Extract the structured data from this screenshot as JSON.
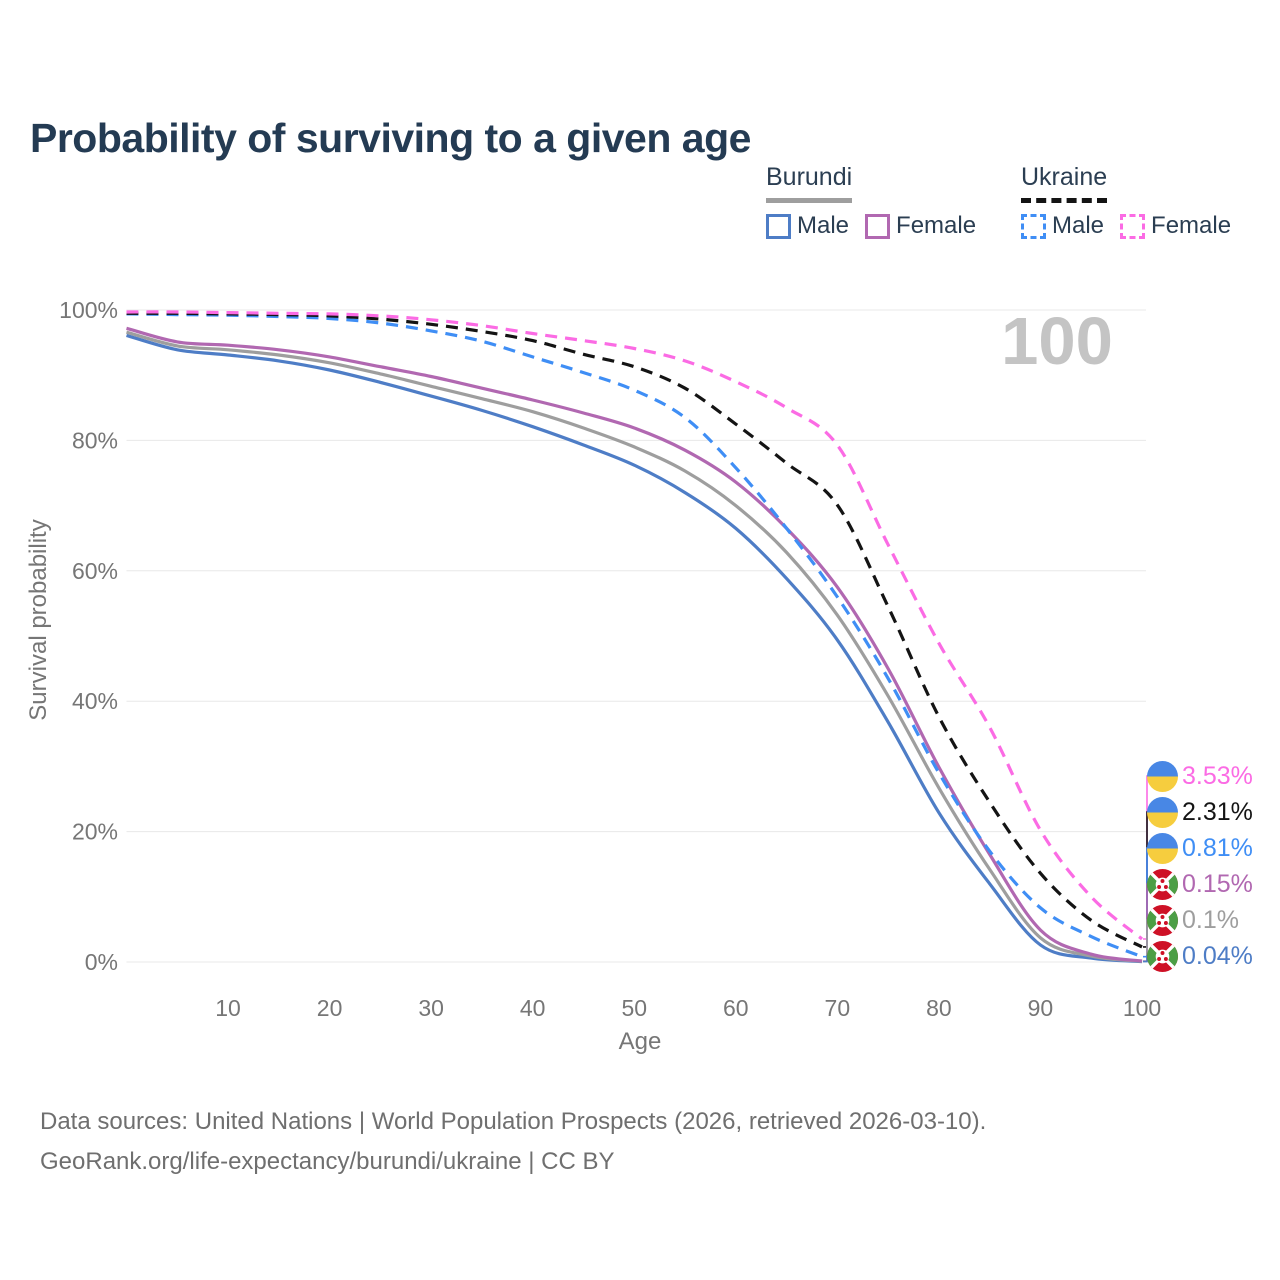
{
  "title": "Probability of surviving to a given age",
  "watermark": "100",
  "legend": {
    "groups": [
      {
        "country": "Burundi",
        "line_color": "#9E9E9E",
        "line_style": "solid",
        "items": [
          {
            "label": "Male",
            "color": "#4E7DC6",
            "dashed": false
          },
          {
            "label": "Female",
            "color": "#B168B1",
            "dashed": false
          }
        ]
      },
      {
        "country": "Ukraine",
        "line_color": "#141414",
        "line_style": "dashed",
        "items": [
          {
            "label": "Male",
            "color": "#3F8EF5",
            "dashed": true
          },
          {
            "label": "Female",
            "color": "#FB6BE4",
            "dashed": true
          }
        ]
      }
    ]
  },
  "chart_data": {
    "type": "line",
    "title": "Probability of surviving to a given age",
    "xlabel": "Age",
    "ylabel": "Survival probability",
    "xlim": [
      0,
      100
    ],
    "ylim": [
      0,
      100
    ],
    "grid": "horizontal",
    "x_ticks": [
      10,
      20,
      30,
      40,
      50,
      60,
      70,
      80,
      90,
      100
    ],
    "y_ticks": [
      {
        "value": 0,
        "label": "0%"
      },
      {
        "value": 20,
        "label": "20%"
      },
      {
        "value": 40,
        "label": "40%"
      },
      {
        "value": 60,
        "label": "60%"
      },
      {
        "value": 80,
        "label": "80%"
      },
      {
        "value": 100,
        "label": "100%"
      }
    ],
    "x": [
      0,
      5,
      10,
      15,
      20,
      25,
      30,
      35,
      40,
      45,
      50,
      55,
      60,
      65,
      70,
      75,
      80,
      85,
      90,
      95,
      100
    ],
    "series": [
      {
        "name": "Ukraine Female",
        "country": "ukraine",
        "sex": "female",
        "color": "#FB6BE4",
        "dashed": true,
        "flag": "ukraine",
        "end_label": "3.53%",
        "values": [
          99.7,
          99.7,
          99.6,
          99.5,
          99.4,
          99.1,
          98.5,
          97.6,
          96.4,
          95.3,
          94.1,
          92.2,
          89.0,
          85.0,
          79.3,
          64.0,
          48.9,
          36.0,
          20.2,
          10.0,
          3.53
        ]
      },
      {
        "name": "Ukraine Both sexes",
        "country": "ukraine",
        "sex": "both",
        "color": "#141414",
        "dashed": true,
        "flag": "ukraine",
        "end_label": "2.31%",
        "values": [
          99.5,
          99.5,
          99.4,
          99.3,
          99.1,
          98.6,
          97.8,
          96.7,
          95.3,
          93.2,
          91.3,
          88.0,
          82.5,
          76.5,
          70.1,
          54.5,
          37.6,
          24.5,
          13.6,
          6.4,
          2.31
        ]
      },
      {
        "name": "Ukraine Male",
        "country": "ukraine",
        "sex": "male",
        "color": "#3F8EF5",
        "dashed": true,
        "flag": "ukraine",
        "end_label": "0.81%",
        "values": [
          99.4,
          99.3,
          99.2,
          99.0,
          98.7,
          98.0,
          96.8,
          95.2,
          92.8,
          90.4,
          87.7,
          83.5,
          75.8,
          66.5,
          56.0,
          43.5,
          29.0,
          17.0,
          8.3,
          3.9,
          0.81
        ]
      },
      {
        "name": "Burundi Female",
        "country": "burundi",
        "sex": "female",
        "color": "#B168B1",
        "dashed": false,
        "flag": "burundi",
        "end_label": "0.15%",
        "values": [
          97.2,
          95.1,
          94.6,
          93.9,
          92.8,
          91.3,
          89.8,
          88.0,
          86.2,
          84.2,
          81.9,
          78.5,
          73.6,
          66.5,
          57.5,
          45.0,
          29.9,
          16.5,
          4.9,
          1.2,
          0.15
        ]
      },
      {
        "name": "Burundi Both sexes",
        "country": "burundi",
        "sex": "both",
        "color": "#9E9E9E",
        "dashed": false,
        "flag": "burundi",
        "end_label": "0.1%",
        "values": [
          96.6,
          94.5,
          93.9,
          93.1,
          91.9,
          90.2,
          88.3,
          86.4,
          84.4,
          81.9,
          79.0,
          75.3,
          70.0,
          62.8,
          53.2,
          40.8,
          26.7,
          14.2,
          3.7,
          0.9,
          0.1
        ]
      },
      {
        "name": "Burundi Male",
        "country": "burundi",
        "sex": "male",
        "color": "#4E7DC6",
        "dashed": false,
        "flag": "burundi",
        "end_label": "0.04%",
        "values": [
          96.1,
          93.9,
          93.1,
          92.2,
          90.8,
          88.9,
          86.8,
          84.6,
          82.1,
          79.3,
          76.2,
          72.0,
          66.5,
          58.8,
          49.4,
          36.8,
          22.9,
          12.0,
          2.6,
          0.6,
          0.04
        ]
      }
    ]
  },
  "colors": {
    "title_text": "#243B53",
    "axis_text": "#767676",
    "gridline": "#E8E8E8",
    "watermark": "#C4C4C4",
    "footer_text": "#6F6F6F",
    "ukraine_flag_blue": "#4887E5",
    "ukraine_flag_yellow": "#F6CD3E",
    "burundi_flag_red": "#CE1126",
    "burundi_flag_green": "#4C9E45"
  },
  "footer": {
    "line1": "Data sources: United Nations | World Population Prospects (2026, retrieved 2026-03-10).",
    "line2": "GeoRank.org/life-expectancy/burundi/ukraine | CC BY"
  }
}
